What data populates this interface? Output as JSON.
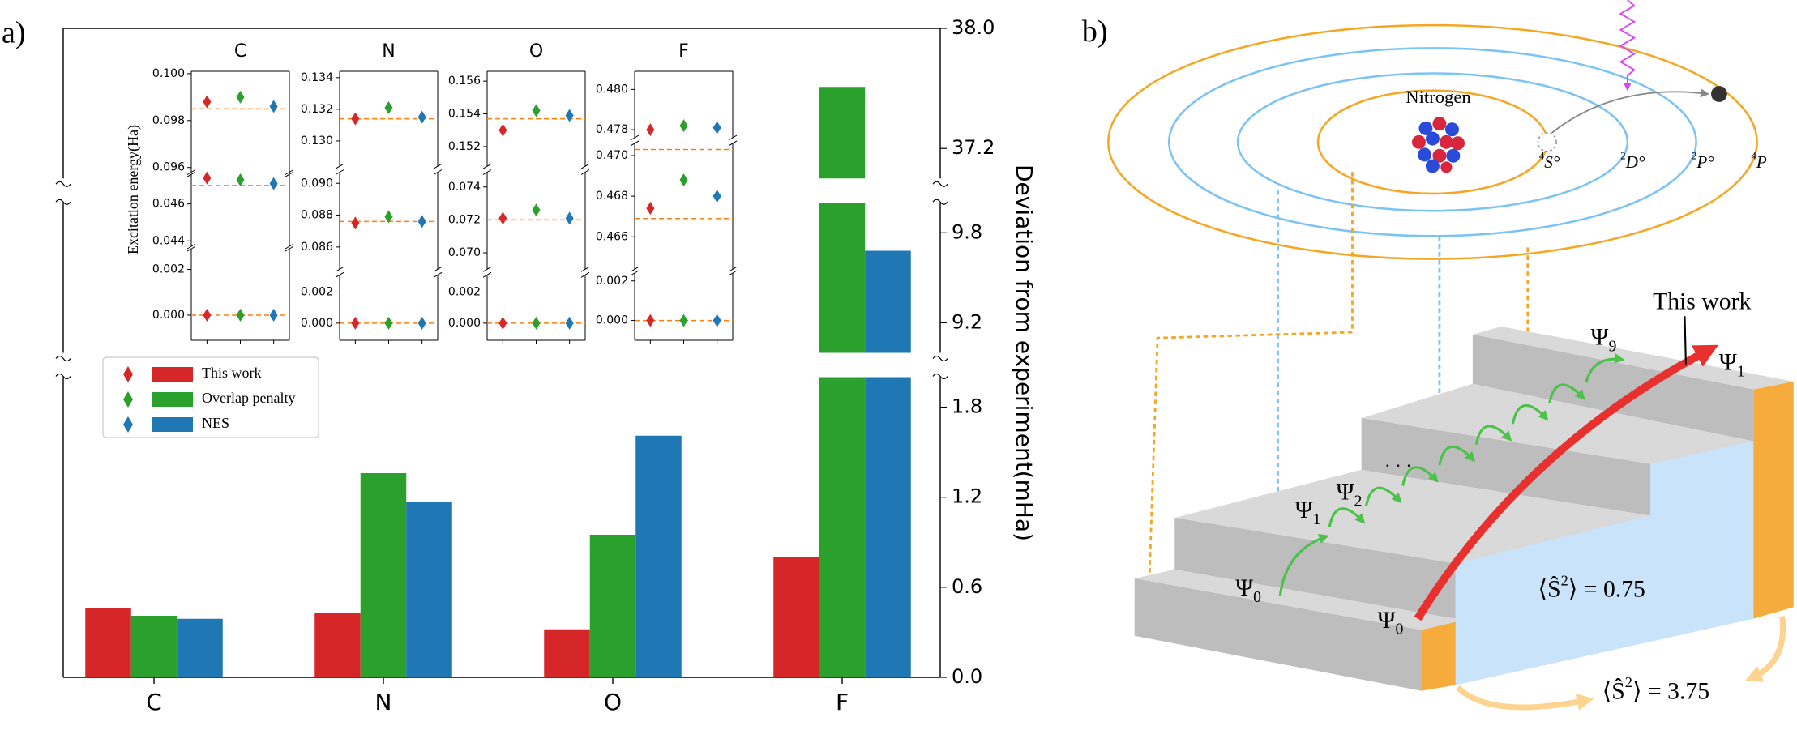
{
  "chart_data": [
    {
      "type": "bar",
      "panel_label": "a)",
      "ylabel": "Deviation from experiment(mHa)",
      "categories": [
        "C",
        "N",
        "O",
        "F"
      ],
      "series": [
        {
          "name": "This work",
          "color": "#d62728",
          "values": [
            0.46,
            0.43,
            0.32,
            0.8
          ]
        },
        {
          "name": "Overlap penalty",
          "color": "#2ca02c",
          "values": [
            0.41,
            1.36,
            0.95,
            37.61
          ]
        },
        {
          "name": "NES",
          "color": "#1f77b4",
          "values": [
            0.39,
            1.17,
            1.61,
            9.68
          ]
        }
      ],
      "ylim": [
        0,
        38
      ],
      "axis_breaks": [
        [
          2.0,
          9.0
        ],
        [
          10.0,
          37.0
        ]
      ],
      "yticks": [
        {
          "value": 0,
          "label": "0.0"
        },
        0.6,
        1.2,
        1.8,
        9.2,
        9.8,
        37.2,
        {
          "value": 38,
          "label": "38.0"
        }
      ],
      "y_axis_side": "right",
      "legend": "center left"
    },
    {
      "type": "scatter",
      "title": "C",
      "ylabel": "Excitation energy(Ha)",
      "ylim": [
        -0.0011,
        0.1001
      ],
      "axis_breaks": [
        [
          0.0029,
          0.0437
        ],
        [
          0.0476,
          0.0958
        ]
      ],
      "yticks": [
        {
          "value": 0,
          "label": "0.000"
        },
        0.002,
        0.044,
        0.046,
        0.096,
        0.098,
        {
          "value": 0.1,
          "label": "0.100"
        }
      ],
      "series": [
        {
          "color": "#d62728",
          "values": [
            0,
            0.0474,
            0.0988
          ]
        },
        {
          "color": "#2ca02c",
          "values": [
            0,
            0.0473,
            0.099
          ]
        },
        {
          "color": "#1f77b4",
          "values": [
            0,
            0.0471,
            0.0986
          ]
        }
      ],
      "reference": [
        0,
        0.047,
        0.0985
      ],
      "reference_color": "#ff7f0e"
    },
    {
      "type": "scatter",
      "title": "N",
      "ylim": [
        -0.0011,
        0.1344
      ],
      "axis_breaks": [
        [
          0.0031,
          0.0846
        ],
        [
          0.0907,
          0.1284
        ]
      ],
      "yticks": [
        {
          "value": 0,
          "label": "0.000"
        },
        0.002,
        0.086,
        0.088,
        {
          "value": 0.09,
          "label": "0.090"
        },
        {
          "value": 0.13,
          "label": "0.130"
        },
        0.132,
        0.134
      ],
      "series": [
        {
          "color": "#d62728",
          "values": [
            0,
            0.0875,
            0.1314
          ]
        },
        {
          "color": "#2ca02c",
          "values": [
            0,
            0.0879,
            0.1321
          ]
        },
        {
          "color": "#1f77b4",
          "values": [
            0,
            0.0876,
            0.1315
          ]
        }
      ],
      "reference": [
        0,
        0.0876,
        0.1314
      ],
      "reference_color": "#ff7f0e"
    },
    {
      "type": "scatter",
      "title": "O",
      "ylim": [
        -0.0011,
        0.1566
      ],
      "axis_breaks": [
        [
          0.0031,
          0.069
        ],
        [
          0.0749,
          0.1508
        ]
      ],
      "yticks": [
        {
          "value": 0,
          "label": "0.000"
        },
        0.002,
        {
          "value": 0.07,
          "label": "0.070"
        },
        0.072,
        0.074,
        0.152,
        0.154,
        0.156
      ],
      "series": [
        {
          "color": "#d62728",
          "values": [
            0,
            0.0721,
            0.153
          ]
        },
        {
          "color": "#2ca02c",
          "values": [
            0,
            0.0726,
            0.1542
          ]
        },
        {
          "color": "#1f77b4",
          "values": [
            0,
            0.0721,
            0.1539
          ]
        }
      ],
      "reference": [
        0,
        0.072,
        0.1537
      ],
      "reference_color": "#ff7f0e"
    },
    {
      "type": "scatter",
      "title": "F",
      "ylim": [
        -0.001,
        0.4809
      ],
      "axis_breaks": [
        [
          0.0024,
          0.4644
        ],
        [
          0.4706,
          0.4776
        ]
      ],
      "yticks": [
        {
          "value": 0,
          "label": "0.000"
        },
        0.002,
        0.466,
        0.468,
        {
          "value": 0.47,
          "label": "0.470"
        },
        0.478,
        {
          "value": 0.48,
          "label": "0.480"
        }
      ],
      "series": [
        {
          "color": "#d62728",
          "values": [
            0,
            0.4674,
            0.478
          ]
        },
        {
          "color": "#2ca02c",
          "values": [
            0,
            0.4688,
            0.4782
          ]
        },
        {
          "color": "#1f77b4",
          "values": [
            0,
            0.468,
            0.4781
          ]
        }
      ],
      "reference": [
        0,
        0.4669,
        0.4703
      ],
      "reference_color": "#ff7f0e"
    }
  ],
  "diagram": {
    "panel_label": "b)",
    "atom_label": "Nitrogen",
    "levels": [
      {
        "sup": "4",
        "main": "S°"
      },
      {
        "sup": "2",
        "main": "D°"
      },
      {
        "sup": "2",
        "main": "P°"
      },
      {
        "sup": "4",
        "main": "P"
      }
    ],
    "annotation": "This work",
    "states": [
      {
        "main": "Ψ",
        "sub": "0"
      },
      {
        "main": "Ψ",
        "sub": "1"
      },
      {
        "main": "Ψ",
        "sub": "2"
      },
      {
        "main": "Ψ",
        "sub": "9"
      },
      {
        "main": "Ψ",
        "sub": "1"
      },
      {
        "main": "Ψ",
        "sub": "0"
      }
    ],
    "ellipsis": "· · ·",
    "spin_labels": [
      {
        "pre": "⟨Ŝ",
        "sup": "2",
        "post": "⟩ = 0.75"
      },
      {
        "pre": "⟨Ŝ",
        "sup": "2",
        "post": "⟩ = 3.75"
      }
    ]
  }
}
